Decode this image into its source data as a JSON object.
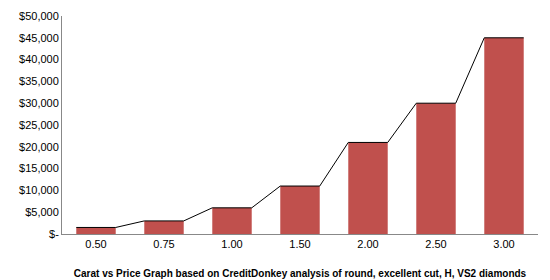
{
  "chart_data": {
    "type": "bar",
    "title": "Carat vs Price Graph based on CreditDonkey analysis of round, excellent cut, H, VS2 diamonds",
    "categories": [
      "0.50",
      "0.75",
      "1.00",
      "1.50",
      "2.00",
      "2.50",
      "3.00"
    ],
    "values": [
      1500,
      3000,
      6000,
      11000,
      21000,
      30000,
      45000
    ],
    "color": "#c0504d",
    "ylim": [
      0,
      50000
    ],
    "yticks": [
      {
        "value": 0,
        "label": "$-"
      },
      {
        "value": 5000,
        "label": "$5,000"
      },
      {
        "value": 10000,
        "label": "$10,000"
      },
      {
        "value": 15000,
        "label": "$15,000"
      },
      {
        "value": 20000,
        "label": "$20,000"
      },
      {
        "value": 25000,
        "label": "$25,000"
      },
      {
        "value": 30000,
        "label": "$30,000"
      },
      {
        "value": 35000,
        "label": "$35,000"
      },
      {
        "value": 40000,
        "label": "$40,000"
      },
      {
        "value": 45000,
        "label": "$45,000"
      },
      {
        "value": 50000,
        "label": "$50,000"
      }
    ],
    "grid": false
  }
}
